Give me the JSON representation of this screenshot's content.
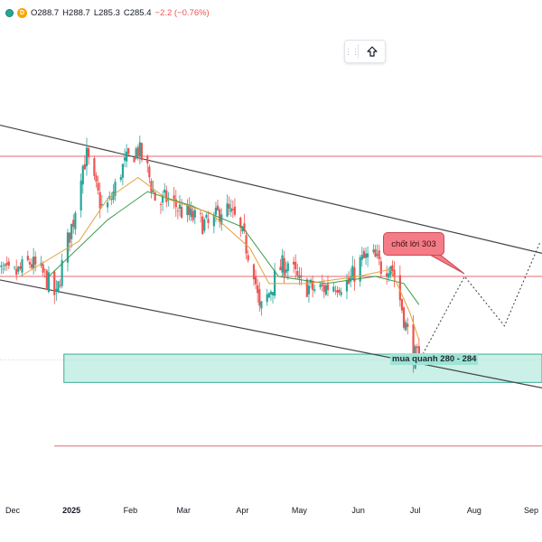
{
  "legend": {
    "open": "O288.7",
    "high": "H288.7",
    "low": "L285.3",
    "close": "C285.4",
    "change": "−2.2 (−0.76%)",
    "interval_badge": "D"
  },
  "annotations": {
    "take_profit": "chốt lời 303",
    "buy_zone": "mua quanh 280 - 284"
  },
  "toolbox": {
    "handle_icon": "drag-handle-icon",
    "button_icon": "arrow-up-icon"
  },
  "colors": {
    "up": "#26a69a",
    "down": "#ef5350",
    "ma_fast": "#e5a13a",
    "ma_slow": "#3d9a4a",
    "resistance": "#e06b75",
    "channel": "#444444",
    "zone": "#9fe3d4"
  },
  "chart_data": {
    "type": "candlestick",
    "x_ticks": [
      {
        "label": "Dec",
        "date": "2024-12-01"
      },
      {
        "label": "2025",
        "date": "2025-01-01"
      },
      {
        "label": "Feb",
        "date": "2025-02-01"
      },
      {
        "label": "Mar",
        "date": "2025-03-01"
      },
      {
        "label": "Apr",
        "date": "2025-04-01"
      },
      {
        "label": "May",
        "date": "2025-05-01"
      },
      {
        "label": "Jun",
        "date": "2025-06-01"
      },
      {
        "label": "Jul",
        "date": "2025-07-01"
      },
      {
        "label": "Aug",
        "date": "2025-08-01"
      },
      {
        "label": "Sep",
        "date": "2025-09-01"
      }
    ],
    "close_path": [
      [
        "2024-11-20",
        296
      ],
      [
        "2024-12-01",
        295
      ],
      [
        "2024-12-10",
        297
      ],
      [
        "2024-12-18",
        295
      ],
      [
        "2024-12-24",
        292
      ],
      [
        "2024-12-28",
        298
      ],
      [
        "2025-01-02",
        303
      ],
      [
        "2025-01-06",
        310
      ],
      [
        "2025-01-09",
        312
      ],
      [
        "2025-01-13",
        308
      ],
      [
        "2025-01-18",
        304
      ],
      [
        "2025-01-22",
        306
      ],
      [
        "2025-01-27",
        310
      ],
      [
        "2025-02-01",
        312
      ],
      [
        "2025-02-05",
        313
      ],
      [
        "2025-02-10",
        310
      ],
      [
        "2025-02-15",
        305
      ],
      [
        "2025-02-20",
        306
      ],
      [
        "2025-02-25",
        305
      ],
      [
        "2025-03-01",
        304
      ],
      [
        "2025-03-08",
        303
      ],
      [
        "2025-03-15",
        302
      ],
      [
        "2025-03-22",
        305
      ],
      [
        "2025-03-28",
        303
      ],
      [
        "2025-04-02",
        300
      ],
      [
        "2025-04-07",
        296
      ],
      [
        "2025-04-10",
        290
      ],
      [
        "2025-04-14",
        292
      ],
      [
        "2025-04-20",
        296
      ],
      [
        "2025-04-25",
        297
      ],
      [
        "2025-05-01",
        294
      ],
      [
        "2025-05-10",
        293
      ],
      [
        "2025-05-20",
        294
      ],
      [
        "2025-05-27",
        294
      ],
      [
        "2025-06-02",
        297
      ],
      [
        "2025-06-08",
        298
      ],
      [
        "2025-06-14",
        296
      ],
      [
        "2025-06-18",
        297
      ],
      [
        "2025-06-22",
        293
      ],
      [
        "2025-06-26",
        288
      ],
      [
        "2025-06-30",
        284
      ],
      [
        "2025-07-03",
        283
      ]
    ],
    "ma_fast_path": [
      [
        "2024-12-05",
        295
      ],
      [
        "2025-01-05",
        300
      ],
      [
        "2025-01-20",
        306
      ],
      [
        "2025-02-05",
        309
      ],
      [
        "2025-02-20",
        306
      ],
      [
        "2025-03-15",
        304
      ],
      [
        "2025-04-05",
        299
      ],
      [
        "2025-04-15",
        294
      ],
      [
        "2025-05-05",
        294
      ],
      [
        "2025-06-01",
        295
      ],
      [
        "2025-06-18",
        296
      ],
      [
        "2025-06-28",
        290
      ],
      [
        "2025-07-03",
        286
      ]
    ],
    "ma_slow_path": [
      [
        "2024-12-20",
        295
      ],
      [
        "2025-01-20",
        303
      ],
      [
        "2025-02-10",
        307
      ],
      [
        "2025-03-05",
        305
      ],
      [
        "2025-04-01",
        302
      ],
      [
        "2025-04-20",
        295
      ],
      [
        "2025-05-15",
        294
      ],
      [
        "2025-06-10",
        295
      ],
      [
        "2025-06-25",
        294
      ],
      [
        "2025-07-03",
        291
      ]
    ],
    "horizontal_lines": [
      312,
      295,
      271
    ],
    "buy_zone": {
      "from": 280,
      "to": 284,
      "start_date": "2024-12-28"
    },
    "channel_upper": [
      [
        "2024-11-15",
        317
      ],
      [
        "2025-09-10",
        298
      ]
    ],
    "channel_lower": [
      [
        "2024-11-15",
        295
      ],
      [
        "2025-09-10",
        279
      ]
    ],
    "projection": [
      [
        "2025-07-03",
        283
      ],
      [
        "2025-07-27",
        295
      ],
      [
        "2025-08-17",
        288
      ],
      [
        "2025-09-05",
        300
      ]
    ]
  }
}
